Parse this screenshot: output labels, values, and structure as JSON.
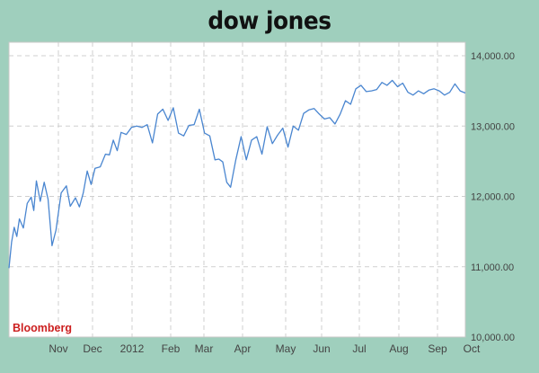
{
  "chart_data": {
    "type": "line",
    "title": "dow jones",
    "source": "Bloomberg",
    "xlabel": "",
    "ylabel": "",
    "x_tick_labels": [
      "Nov",
      "Dec",
      "2012",
      "Feb",
      "Mar",
      "Apr",
      "May",
      "Jun",
      "Jul",
      "Aug",
      "Sep",
      "Oct"
    ],
    "y_tick_labels": [
      "10,000.00",
      "11,000.00",
      "12,000.00",
      "13,000.00",
      "14,000.00"
    ],
    "y_ticks": [
      10000,
      11000,
      12000,
      13000,
      14000
    ],
    "ylim": [
      10000,
      14000
    ],
    "grid": true,
    "axis_side": "right",
    "line_color": "#4a86d0",
    "background_color": "#9fcfbd",
    "series": [
      {
        "x": [
          0,
          2,
          4,
          6,
          8,
          11,
          14,
          17,
          19,
          21,
          24,
          27,
          30,
          33,
          36,
          40,
          44,
          47,
          51,
          54,
          57,
          60,
          63,
          66,
          70,
          74,
          77,
          80,
          83,
          86,
          90,
          94,
          98,
          102,
          106,
          110,
          114,
          118,
          122,
          126,
          130,
          134,
          138,
          142,
          146,
          150,
          154,
          158,
          161,
          164,
          167,
          170,
          174,
          178,
          182,
          186,
          190,
          194,
          198,
          202,
          206,
          210,
          214,
          218,
          222,
          226,
          230,
          234,
          238,
          242,
          246,
          250,
          254,
          258,
          262,
          266,
          270,
          274,
          278,
          282,
          286,
          290,
          294,
          298,
          302,
          306,
          310,
          314,
          318,
          322,
          326,
          330,
          334,
          338,
          342,
          346,
          350
        ],
        "values": [
          10980,
          11350,
          11560,
          11430,
          11680,
          11550,
          11900,
          11990,
          11800,
          12220,
          11930,
          12200,
          11960,
          11300,
          11520,
          12050,
          12150,
          11860,
          11980,
          11850,
          12050,
          12360,
          12170,
          12400,
          12420,
          12600,
          12590,
          12800,
          12650,
          12910,
          12880,
          12980,
          13000,
          12980,
          13020,
          12760,
          13170,
          13240,
          13080,
          13260,
          12900,
          12860,
          13010,
          13020,
          13240,
          12900,
          12860,
          12520,
          12530,
          12490,
          12200,
          12130,
          12520,
          12850,
          12520,
          12800,
          12850,
          12600,
          12990,
          12750,
          12870,
          12970,
          12700,
          13000,
          12940,
          13180,
          13230,
          13250,
          13170,
          13100,
          13120,
          13030,
          13170,
          13360,
          13310,
          13530,
          13580,
          13490,
          13500,
          13520,
          13620,
          13580,
          13650,
          13560,
          13610,
          13480,
          13440,
          13500,
          13460,
          13510,
          13530,
          13500,
          13440,
          13480,
          13600,
          13500,
          13470
        ]
      }
    ]
  }
}
